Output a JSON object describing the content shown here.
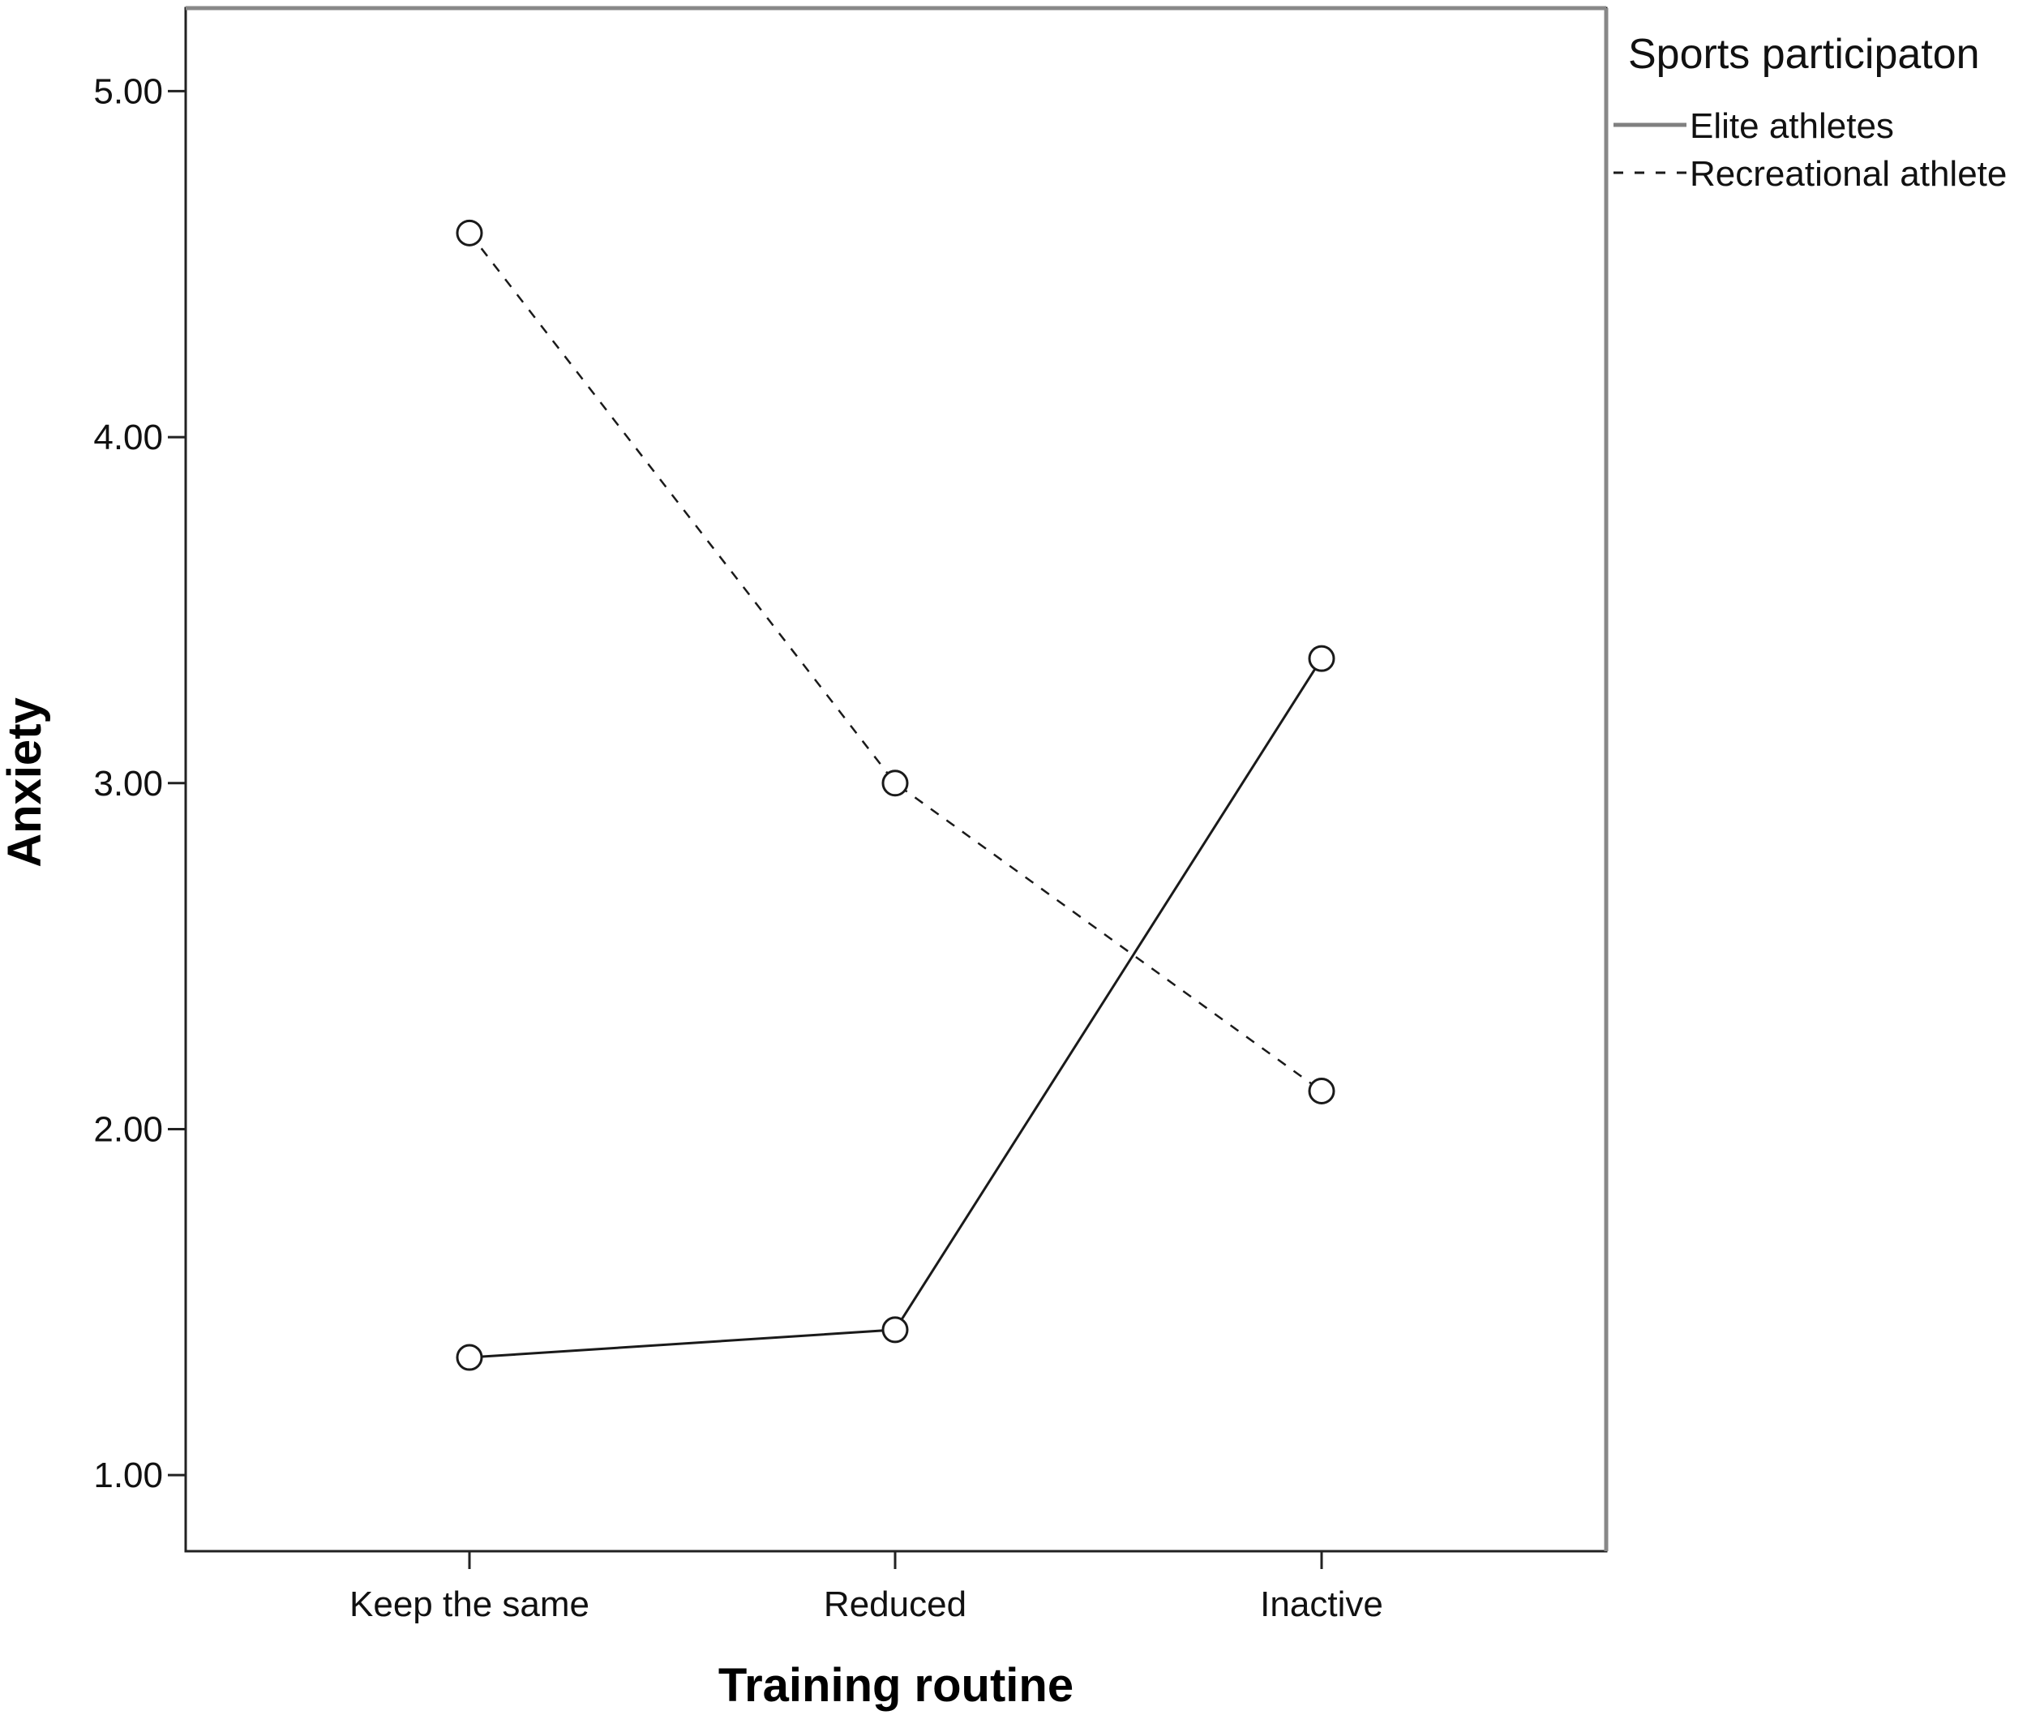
{
  "chart_data": {
    "type": "line",
    "title": "",
    "xlabel": "Training routine",
    "ylabel": "Anxiety",
    "categories": [
      "Keep the same",
      "Reduced",
      "Inactive"
    ],
    "y_ticks": [
      "1.00",
      "2.00",
      "3.00",
      "4.00",
      "5.00"
    ],
    "ylim": [
      0.78,
      5.24
    ],
    "grid": false,
    "legend": {
      "title": "Sports participaton",
      "position": "right"
    },
    "series": [
      {
        "name": "Elite athletes",
        "values": [
          1.34,
          1.42,
          3.36
        ],
        "line_style": "solid",
        "color": "#1a1a1a",
        "legend_color": "#808080"
      },
      {
        "name": "Recreational athlete",
        "values": [
          4.59,
          3.0,
          2.11
        ],
        "line_style": "dashed",
        "color": "#1a1a1a",
        "legend_color": "#1a1a1a"
      }
    ],
    "marker": "circle"
  }
}
